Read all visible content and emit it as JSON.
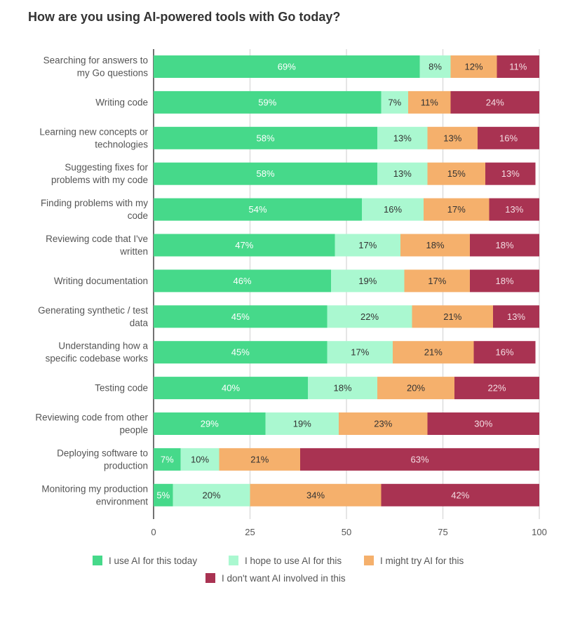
{
  "chart_data": {
    "type": "bar",
    "orientation": "horizontal",
    "stacked": true,
    "title": "How are you using AI-powered tools with Go today?",
    "categories": [
      [
        "Searching for answers to",
        "my Go questions"
      ],
      [
        "Writing code"
      ],
      [
        "Learning new concepts or",
        "technologies"
      ],
      [
        "Suggesting fixes for",
        "problems with my code"
      ],
      [
        "Finding problems with my",
        "code"
      ],
      [
        "Reviewing code that I've",
        "written"
      ],
      [
        "Writing documentation"
      ],
      [
        "Generating synthetic / test",
        "data"
      ],
      [
        "Understanding how a",
        "specific codebase works"
      ],
      [
        "Testing code"
      ],
      [
        "Reviewing code from other",
        "people"
      ],
      [
        "Deploying software to",
        "production"
      ],
      [
        "Monitoring my production",
        "environment"
      ]
    ],
    "series": [
      {
        "name": "I use AI for this today",
        "color": "#46d98a",
        "text_color": "#ffffff",
        "values": [
          69,
          59,
          58,
          58,
          54,
          47,
          46,
          45,
          45,
          40,
          29,
          7,
          5
        ]
      },
      {
        "name": "I hope to use AI for this",
        "color": "#aaf8d0",
        "text_color": "#333333",
        "values": [
          8,
          7,
          13,
          13,
          16,
          17,
          19,
          22,
          17,
          18,
          19,
          10,
          20
        ]
      },
      {
        "name": "I might try AI for this",
        "color": "#f5b06c",
        "text_color": "#333333",
        "values": [
          12,
          11,
          13,
          15,
          17,
          18,
          17,
          21,
          21,
          20,
          23,
          21,
          34
        ]
      },
      {
        "name": "I don't want AI involved in this",
        "color": "#a93352",
        "text_color": "#f3dde3",
        "values": [
          11,
          24,
          16,
          13,
          13,
          18,
          18,
          13,
          16,
          22,
          30,
          63,
          42
        ]
      }
    ],
    "xlim": [
      0,
      100
    ],
    "xticks": [
      "0",
      "25",
      "50",
      "75",
      "100"
    ],
    "label_suffix": "%",
    "grid": true,
    "legend_position": "bottom"
  }
}
